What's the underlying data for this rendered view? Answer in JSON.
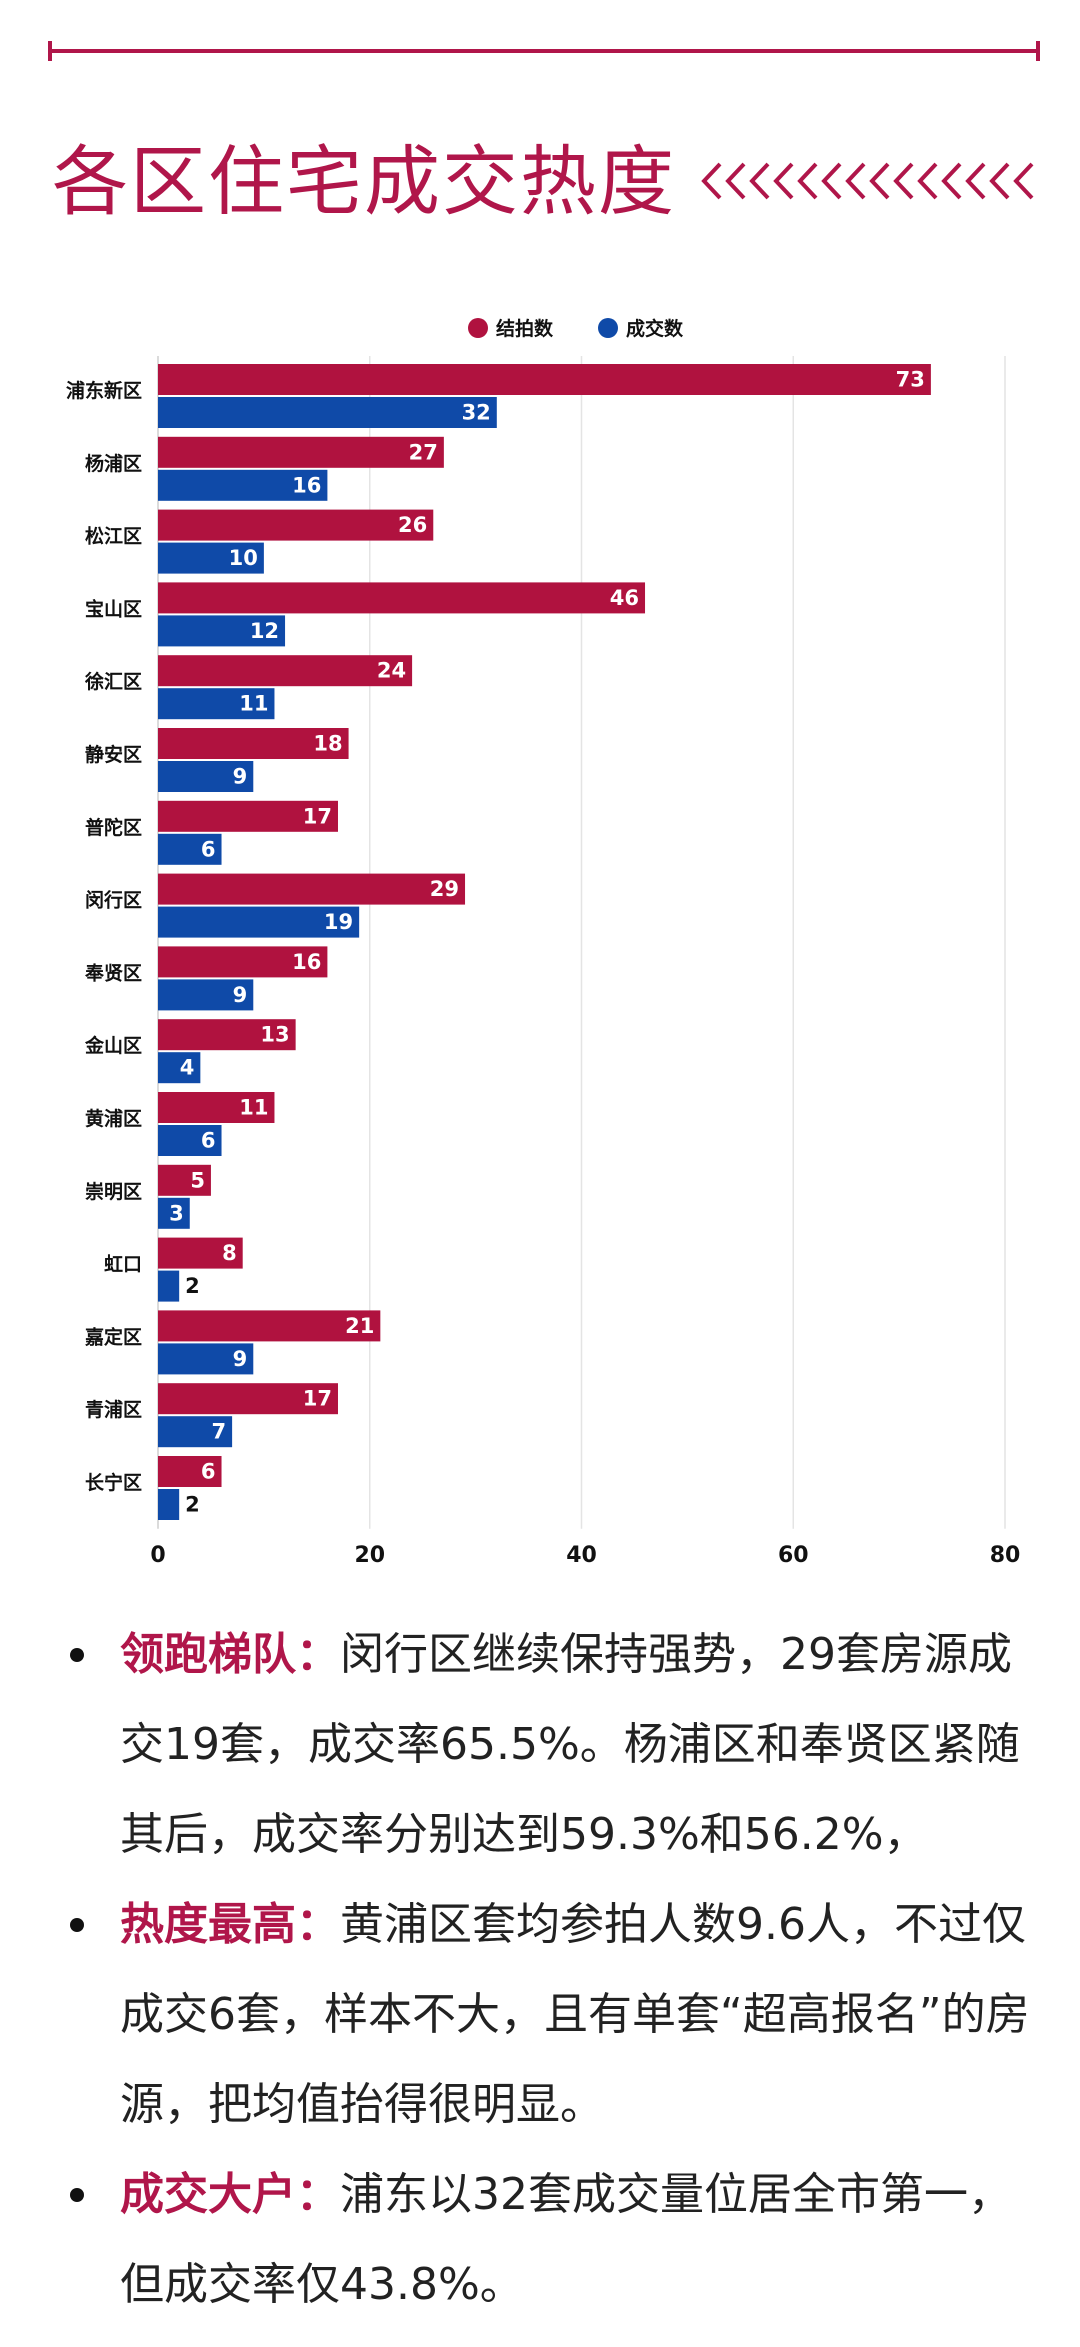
{
  "page": {
    "title": "各区住宅成交热度"
  },
  "colors": {
    "accent": "#b0164a",
    "series_auction": "#b0123f",
    "series_deal": "#0f4aa8"
  },
  "chart_data": {
    "type": "bar",
    "orientation": "horizontal",
    "categories": [
      "浦东新区",
      "杨浦区",
      "松江区",
      "宝山区",
      "徐汇区",
      "静安区",
      "普陀区",
      "闵行区",
      "奉贤区",
      "金山区",
      "黄浦区",
      "崇明区",
      "虹口",
      "嘉定区",
      "青浦区",
      "长宁区"
    ],
    "series": [
      {
        "name": "结拍数",
        "values": [
          73,
          27,
          26,
          46,
          24,
          18,
          17,
          29,
          16,
          13,
          11,
          5,
          8,
          21,
          17,
          6
        ]
      },
      {
        "name": "成交数",
        "values": [
          32,
          16,
          10,
          12,
          11,
          9,
          6,
          19,
          9,
          4,
          6,
          3,
          2,
          9,
          7,
          2
        ]
      }
    ],
    "xlim": [
      0,
      80
    ],
    "xticks": [
      0,
      20,
      40,
      60,
      80
    ],
    "grid": true,
    "legend": "top-center",
    "title": "",
    "xlabel": "",
    "ylabel": ""
  },
  "notes": [
    {
      "key": "领跑梯队：",
      "text": "闵行区继续保持强势，29套房源成交19套，成交率65.5%。杨浦区和奉贤区紧随其后，成交率分别达到59.3%和56.2%，"
    },
    {
      "key": "热度最高：",
      "text": "黄浦区套均参拍人数9.6人，不过仅成交6套，样本不大，且有单套“超高报名”的房源，把均值抬得很明显。"
    },
    {
      "key": "成交大户：",
      "text": "浦东以32套成交量位居全市第一，但成交率仅43.8%。"
    }
  ]
}
